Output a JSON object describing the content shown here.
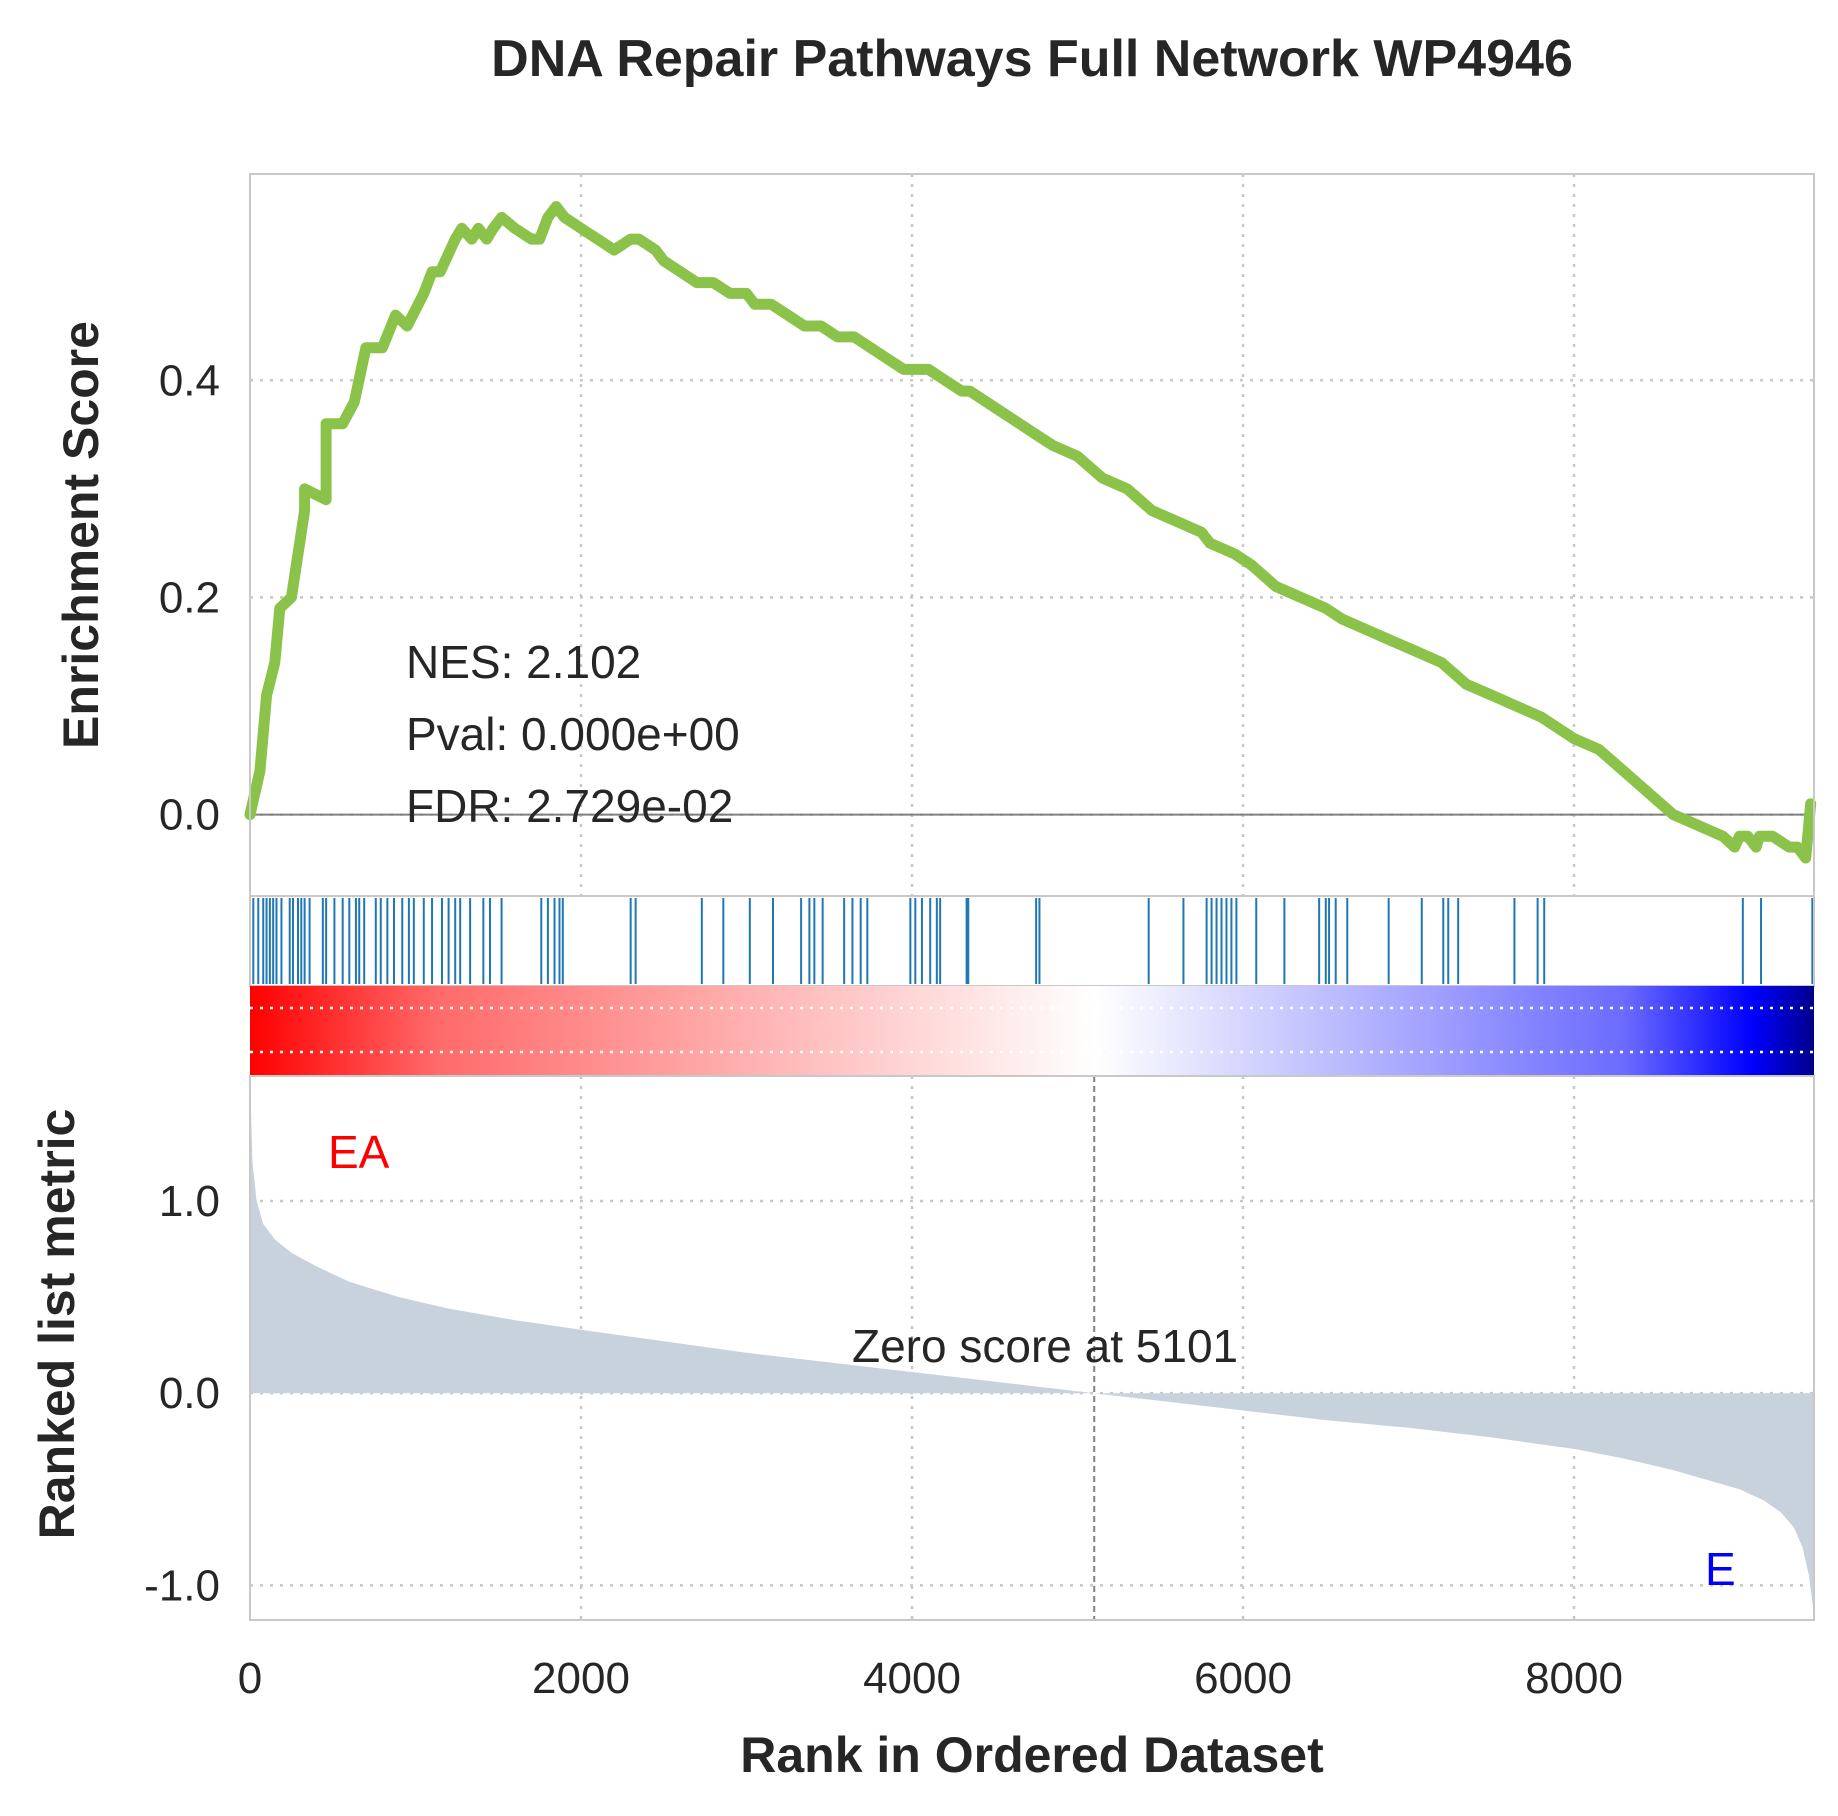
{
  "chart_data": {
    "type": "line",
    "title": "DNA Repair Pathways Full Network WP4946",
    "xlabel": "Rank in Ordered Dataset",
    "xlim": [
      0,
      9450
    ],
    "x_ticks": [
      0,
      2000,
      4000,
      6000,
      8000
    ],
    "grid": true,
    "colors": {
      "es_line": "#8bc34a",
      "hits": "#1f77b4",
      "metric_fill": "#c8d2dc",
      "zero_line": "#808080",
      "label_pos": "#ff0000",
      "label_neg": "#0000ff"
    },
    "es_panel": {
      "ylabel": "Enrichment Score",
      "ylim": [
        -0.075,
        0.59
      ],
      "y_ticks": [
        "0.0",
        "0.2",
        "0.4"
      ],
      "y_tick_values": [
        0.0,
        0.2,
        0.4
      ],
      "stats": {
        "nes": "NES: 2.102",
        "pval": "Pval: 0.000e+00",
        "fdr": "FDR: 2.729e-02"
      },
      "series": [
        {
          "x": [
            0,
            60,
            100,
            150,
            180,
            250,
            330,
            330,
            460,
            460,
            560,
            630,
            700,
            800,
            880,
            950,
            1050,
            1100,
            1150,
            1240,
            1280,
            1340,
            1380,
            1430,
            1470,
            1520,
            1600,
            1700,
            1750,
            1800,
            1850,
            1900,
            2000,
            2100,
            2200,
            2300,
            2350,
            2450,
            2500,
            2600,
            2700,
            2800,
            2900,
            3000,
            3050,
            3150,
            3250,
            3350,
            3450,
            3550,
            3650,
            3750,
            3850,
            3950,
            4000,
            4100,
            4200,
            4300,
            4350,
            4450,
            4550,
            4650,
            4750,
            4850,
            5000,
            5150,
            5300,
            5450,
            5600,
            5750,
            5800,
            5950,
            6050,
            6200,
            6350,
            6500,
            6600,
            6750,
            6900,
            7050,
            7200,
            7350,
            7500,
            7650,
            7800,
            7900,
            8000,
            8150,
            8300,
            8450,
            8600,
            8750,
            8900,
            8970,
            9000,
            9050,
            9100,
            9120,
            9200,
            9300,
            9350,
            9400,
            9430
          ],
          "y": [
            0.0,
            0.04,
            0.11,
            0.14,
            0.19,
            0.2,
            0.28,
            0.3,
            0.29,
            0.36,
            0.36,
            0.38,
            0.43,
            0.43,
            0.46,
            0.45,
            0.48,
            0.5,
            0.5,
            0.53,
            0.54,
            0.53,
            0.54,
            0.53,
            0.54,
            0.55,
            0.54,
            0.53,
            0.53,
            0.55,
            0.56,
            0.55,
            0.54,
            0.53,
            0.52,
            0.53,
            0.53,
            0.52,
            0.51,
            0.5,
            0.49,
            0.49,
            0.48,
            0.48,
            0.47,
            0.47,
            0.46,
            0.45,
            0.45,
            0.44,
            0.44,
            0.43,
            0.42,
            0.41,
            0.41,
            0.41,
            0.4,
            0.39,
            0.39,
            0.38,
            0.37,
            0.36,
            0.35,
            0.34,
            0.33,
            0.31,
            0.3,
            0.28,
            0.27,
            0.26,
            0.25,
            0.24,
            0.23,
            0.21,
            0.2,
            0.19,
            0.18,
            0.17,
            0.16,
            0.15,
            0.14,
            0.12,
            0.11,
            0.1,
            0.09,
            0.08,
            0.07,
            0.06,
            0.04,
            0.02,
            0.0,
            -0.01,
            -0.02,
            -0.03,
            -0.02,
            -0.02,
            -0.03,
            -0.02,
            -0.02,
            -0.03,
            -0.03,
            -0.04,
            0.01
          ]
        }
      ]
    },
    "hits": [
      20,
      50,
      80,
      100,
      120,
      140,
      160,
      190,
      240,
      260,
      290,
      310,
      330,
      360,
      440,
      460,
      510,
      560,
      600,
      640,
      660,
      690,
      760,
      790,
      830,
      870,
      920,
      960,
      990,
      1050,
      1100,
      1160,
      1200,
      1240,
      1270,
      1330,
      1410,
      1450,
      1520,
      1760,
      1800,
      1840,
      1870,
      1890,
      2300,
      2330,
      2730,
      2860,
      3020,
      3160,
      3330,
      3380,
      3410,
      3460,
      3590,
      3640,
      3690,
      3730,
      3990,
      4020,
      4060,
      4110,
      4150,
      4170,
      4330,
      4340,
      4750,
      4770,
      5430,
      5640,
      5780,
      5810,
      5840,
      5870,
      5900,
      5930,
      5960,
      6080,
      6250,
      6460,
      6500,
      6520,
      6560,
      6630,
      6880,
      7080,
      7210,
      7240,
      7300,
      7640,
      7780,
      7820,
      9020,
      9130,
      9440
    ],
    "ranking": {
      "ylabel": "Ranked list metric",
      "ylim": [
        -1.18,
        1.65
      ],
      "y_ticks": [
        "-1.0",
        "0.0",
        "1.0"
      ],
      "y_tick_values": [
        -1.0,
        0.0,
        1.0
      ],
      "zero_score_text": "Zero score at 5101",
      "zero_score_rank": 5101,
      "pos_label": "EA",
      "neg_label": "E",
      "x": [
        0,
        15,
        40,
        80,
        150,
        250,
        400,
        600,
        900,
        1200,
        1600,
        2000,
        2500,
        3000,
        3500,
        4000,
        4500,
        5101,
        5600,
        6000,
        6500,
        7000,
        7500,
        8000,
        8300,
        8600,
        8800,
        9000,
        9150,
        9250,
        9330,
        9380,
        9420,
        9450
      ],
      "y": [
        1.65,
        1.2,
        1.0,
        0.88,
        0.8,
        0.73,
        0.66,
        0.58,
        0.5,
        0.44,
        0.38,
        0.33,
        0.27,
        0.21,
        0.16,
        0.11,
        0.06,
        0.0,
        -0.05,
        -0.09,
        -0.14,
        -0.18,
        -0.23,
        -0.29,
        -0.34,
        -0.4,
        -0.45,
        -0.5,
        -0.56,
        -0.62,
        -0.7,
        -0.8,
        -0.95,
        -1.15
      ]
    }
  }
}
